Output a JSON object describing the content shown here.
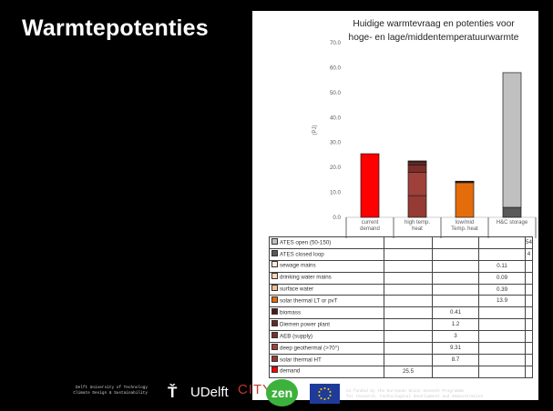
{
  "slide": {
    "title": "Warmtepotenties"
  },
  "chart_data": {
    "type": "bar",
    "stacked": true,
    "title_lines": [
      "Huidige warmtevraag en potenties voor",
      "hoge- en lage/middentemperatuurwarmte"
    ],
    "ylabel": "(PJ)",
    "ylim": [
      0,
      70
    ],
    "yticks": [
      "0.0",
      "10.0",
      "20.0",
      "30.0",
      "40.0",
      "50.0",
      "60.0",
      "70.0"
    ],
    "grid": false,
    "categories": [
      [
        "current",
        "demand"
      ],
      [
        "high temp.",
        "heat"
      ],
      [
        "low/mid",
        "Temp. heat"
      ],
      [
        "H&C storage"
      ]
    ],
    "series": [
      {
        "name": "ATES open (50-150)",
        "color": "#c0c0c0",
        "values": [
          null,
          null,
          null,
          54
        ]
      },
      {
        "name": "ATES closed loop",
        "color": "#595959",
        "values": [
          null,
          null,
          null,
          4
        ]
      },
      {
        "name": "sewage mains",
        "color": "#fde9d9",
        "values": [
          null,
          null,
          0.11,
          null
        ]
      },
      {
        "name": "drinking water mains",
        "color": "#fcd5b4",
        "values": [
          null,
          null,
          0.09,
          null
        ]
      },
      {
        "name": "surface water",
        "color": "#fabf8f",
        "values": [
          null,
          null,
          0.39,
          null
        ]
      },
      {
        "name": "solar thermal LT or pvT",
        "color": "#e46c0a",
        "values": [
          null,
          null,
          13.9,
          null
        ]
      },
      {
        "name": "biomass",
        "color": "#4d1a14",
        "values": [
          null,
          0.41,
          null,
          null
        ]
      },
      {
        "name": "Diemen power plant",
        "color": "#632a23",
        "values": [
          null,
          1.2,
          null,
          null
        ]
      },
      {
        "name": "AEB (supply)",
        "color": "#7b2e29",
        "values": [
          null,
          3,
          null,
          null
        ]
      },
      {
        "name": "deep geothermal (>70°)",
        "color": "#a0403a",
        "values": [
          null,
          9.31,
          null,
          null
        ]
      },
      {
        "name": "solar thermal HT",
        "color": "#963a34",
        "values": [
          null,
          8.7,
          null,
          null
        ]
      },
      {
        "name": "demand",
        "color": "#ff0000",
        "values": [
          25.5,
          null,
          null,
          null
        ]
      }
    ],
    "table_rows": [
      {
        "label": "ATES open (50-150)",
        "color": "#c0c0c0",
        "cells": [
          "",
          "",
          "",
          "54"
        ]
      },
      {
        "label": "ATES closed loop",
        "color": "#595959",
        "cells": [
          "",
          "",
          "",
          "4"
        ]
      },
      {
        "label": "sewage mains",
        "color": "#fde9d9",
        "cells": [
          "",
          "",
          "0.11",
          ""
        ]
      },
      {
        "label": "drinking water mains",
        "color": "#fcd5b4",
        "cells": [
          "",
          "",
          "0.09",
          ""
        ]
      },
      {
        "label": "surface water",
        "color": "#fabf8f",
        "cells": [
          "",
          "",
          "0.39",
          ""
        ]
      },
      {
        "label": "solar thermal LT or pvT",
        "color": "#e46c0a",
        "cells": [
          "",
          "",
          "13.9",
          ""
        ]
      },
      {
        "label": "biomass",
        "color": "#4d1a14",
        "cells": [
          "",
          "0.41",
          "",
          ""
        ]
      },
      {
        "label": "Diemen power plant",
        "color": "#632a23",
        "cells": [
          "",
          "1.2",
          "",
          ""
        ]
      },
      {
        "label": "AEB (supply)",
        "color": "#7b2e29",
        "cells": [
          "",
          "3",
          "",
          ""
        ]
      },
      {
        "label": "deep geothermal (>70°)",
        "color": "#a0403a",
        "cells": [
          "",
          "9.31",
          "",
          ""
        ]
      },
      {
        "label": "solar thermal HT",
        "color": "#963a34",
        "cells": [
          "",
          "8.7",
          "",
          ""
        ]
      },
      {
        "label": "demand",
        "color": "#ff0000",
        "cells": [
          "25.5",
          "",
          "",
          ""
        ]
      }
    ]
  },
  "footer": {
    "left_lines": [
      "Delft University of Technology",
      "Climate Design & Sustainability"
    ],
    "tudelft_mark": "Ť",
    "tudelft_text": "UDelft",
    "city_logo_text": "CITY",
    "zen_logo_text": "zen",
    "right_lines": [
      "Co-funded by the European Union Seventh Programme",
      "for research, technological development and demonstration"
    ]
  }
}
